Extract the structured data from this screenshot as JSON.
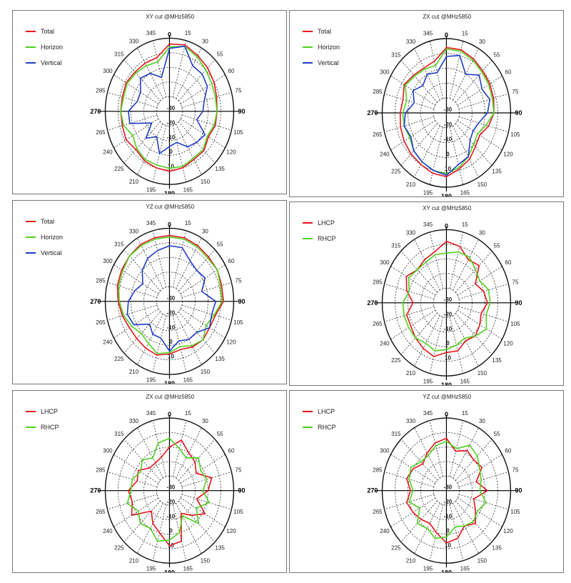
{
  "chart_data": [
    {
      "type": "polar-line",
      "title": "XY cut @MHz5850",
      "angle_ticks": [
        "0",
        "15",
        "30",
        "55",
        "60",
        "75",
        "90",
        "105",
        "120",
        "135",
        "150",
        "165",
        "180",
        "195",
        "210",
        "225",
        "240",
        "265",
        "270",
        "285",
        "300",
        "315",
        "330",
        "345"
      ],
      "radial_ticks": [
        "10",
        "0",
        "-10",
        "-20",
        "-30"
      ],
      "rlim": [
        -40,
        10
      ],
      "legend": "top-left",
      "series": [
        {
          "name": "Total",
          "color": "#e8141c",
          "values": [
            6,
            7,
            4,
            2,
            0,
            -2,
            -3,
            -3,
            -5,
            -2,
            -2,
            0,
            1,
            0,
            -1,
            -3,
            -1,
            -2,
            -2,
            -2,
            -1,
            -2,
            -2,
            -2
          ]
        },
        {
          "name": "Horizon",
          "color": "#4ed11e",
          "values": [
            4,
            6,
            3,
            0,
            -2,
            -3,
            -3,
            -4,
            -6,
            -3,
            -3,
            -1,
            -1,
            -2,
            -2,
            -4,
            -7,
            -3,
            -2,
            -3,
            -2,
            -3,
            -4,
            -5
          ]
        },
        {
          "name": "Vertical",
          "color": "#1e3cc8",
          "values": [
            3,
            6,
            -4,
            -4,
            -6,
            -12,
            -14,
            -18,
            -8,
            -10,
            -12,
            -18,
            -16,
            -10,
            -20,
            -14,
            -24,
            -8,
            -8,
            -14,
            -14,
            -8,
            -10,
            -16
          ]
        }
      ]
    },
    {
      "type": "polar-line",
      "title": "ZX cut @MHz5850",
      "angle_ticks": [
        "0",
        "15",
        "30",
        "55",
        "60",
        "75",
        "90",
        "105",
        "120",
        "135",
        "150",
        "165",
        "180",
        "195",
        "210",
        "225",
        "240",
        "265",
        "270",
        "285",
        "300",
        "315",
        "330",
        "345"
      ],
      "radial_ticks": [
        "10",
        "0",
        "-10",
        "-20",
        "-30"
      ],
      "rlim": [
        -40,
        10
      ],
      "legend": "top-left",
      "series": [
        {
          "name": "Total",
          "color": "#e8141c",
          "values": [
            4,
            4,
            2,
            0,
            -1,
            -2,
            -3,
            -6,
            -10,
            -8,
            -4,
            -1,
            3,
            2,
            0,
            -1,
            -2,
            -3,
            -4,
            -5,
            -2,
            -4,
            -5,
            -4
          ]
        },
        {
          "name": "Horizon",
          "color": "#4ed11e",
          "values": [
            3,
            3,
            1,
            -1,
            -2,
            -3,
            -3,
            -8,
            -12,
            -10,
            -6,
            -2,
            1,
            0,
            -2,
            -4,
            -7,
            -6,
            -6,
            -8,
            -3,
            -5,
            -6,
            -7
          ]
        },
        {
          "name": "Vertical",
          "color": "#1e3cc8",
          "values": [
            -2,
            0,
            -10,
            -4,
            -8,
            -5,
            -8,
            -14,
            -16,
            -14,
            -6,
            -4,
            2,
            0,
            -2,
            -4,
            -8,
            -6,
            -8,
            -14,
            -10,
            -14,
            -10,
            -12
          ]
        }
      ]
    },
    {
      "type": "polar-line",
      "title": "YZ cut @MHz5850",
      "angle_ticks": [
        "0",
        "15",
        "30",
        "55",
        "60",
        "75",
        "90",
        "105",
        "120",
        "135",
        "150",
        "165",
        "180",
        "195",
        "210",
        "225",
        "240",
        "265",
        "270",
        "285",
        "300",
        "315",
        "330",
        "345"
      ],
      "radial_ticks": [
        "10",
        "0",
        "-10",
        "-20",
        "-30"
      ],
      "rlim": [
        -40,
        10
      ],
      "legend": "top-left",
      "series": [
        {
          "name": "Total",
          "color": "#e8141c",
          "values": [
            5,
            5,
            4,
            3,
            3,
            2,
            2,
            -3,
            -4,
            -3,
            -4,
            -6,
            -4,
            -2,
            -3,
            -4,
            -4,
            -2,
            0,
            2,
            3,
            4,
            5,
            5
          ]
        },
        {
          "name": "Horizon",
          "color": "#4ed11e",
          "values": [
            4,
            4,
            3,
            2,
            3,
            1,
            1,
            -4,
            -7,
            -3,
            -5,
            -8,
            -5,
            -3,
            -7,
            -9,
            -6,
            -3,
            -1,
            1,
            2,
            4,
            4,
            4
          ]
        },
        {
          "name": "Vertical",
          "color": "#1e3cc8",
          "values": [
            -2,
            -2,
            -8,
            -10,
            -8,
            -14,
            -4,
            -6,
            -4,
            -10,
            -10,
            -12,
            -6,
            -14,
            -14,
            -18,
            -8,
            -6,
            -8,
            -12,
            -16,
            -10,
            -6,
            -4
          ]
        }
      ]
    },
    {
      "type": "polar-line",
      "title": "XY cut @MHz5850",
      "angle_ticks": [
        "0",
        "15",
        "30",
        "55",
        "60",
        "75",
        "90",
        "105",
        "120",
        "135",
        "150",
        "165",
        "180",
        "195",
        "210",
        "225",
        "240",
        "265",
        "270",
        "285",
        "300",
        "315",
        "330",
        "345"
      ],
      "radial_ticks": [
        "10",
        "0",
        "-10",
        "-20",
        "-30"
      ],
      "rlim": [
        -40,
        10
      ],
      "legend": "top-left",
      "series": [
        {
          "name": "LHCP",
          "color": "#e8141c",
          "values": [
            2,
            0,
            -6,
            -4,
            -14,
            -10,
            -8,
            -12,
            -10,
            -8,
            -10,
            -6,
            -6,
            -2,
            -4,
            -6,
            -8,
            -8,
            -14,
            -8,
            -4,
            -8,
            -6,
            -4
          ]
        },
        {
          "name": "RHCP",
          "color": "#4ed11e",
          "values": [
            -6,
            -4,
            -4,
            -8,
            -10,
            -6,
            -6,
            -8,
            -4,
            -8,
            -12,
            -10,
            -8,
            -6,
            -8,
            -6,
            -6,
            -6,
            -6,
            -10,
            -6,
            -8,
            -8,
            -6
          ]
        }
      ]
    },
    {
      "type": "polar-line",
      "title": "ZX cut @MHz5850",
      "angle_ticks": [
        "0",
        "15",
        "30",
        "55",
        "60",
        "75",
        "90",
        "105",
        "120",
        "135",
        "150",
        "165",
        "180",
        "195",
        "210",
        "225",
        "240",
        "265",
        "270",
        "285",
        "300",
        "315",
        "330",
        "345"
      ],
      "radial_ticks": [
        "10",
        "0",
        "-10",
        "-20",
        "-30"
      ],
      "rlim": [
        -40,
        10
      ],
      "legend": "top-left",
      "series": [
        {
          "name": "LHCP",
          "color": "#e8141c",
          "values": [
            -10,
            -4,
            -10,
            -12,
            -16,
            -6,
            -10,
            -18,
            -8,
            -16,
            -22,
            -4,
            -2,
            -10,
            -14,
            -20,
            -6,
            -10,
            -8,
            -14,
            -12,
            -18,
            -18,
            -16
          ]
        },
        {
          "name": "RHCP",
          "color": "#4ed11e",
          "values": [
            -4,
            -10,
            -14,
            -8,
            -12,
            -10,
            -14,
            -8,
            -16,
            -8,
            -20,
            -10,
            -6,
            -4,
            -10,
            -8,
            -12,
            -6,
            -10,
            -10,
            -14,
            -10,
            -14,
            -6
          ]
        }
      ]
    },
    {
      "type": "polar-line",
      "title": "YZ cut @MHz5850",
      "angle_ticks": [
        "0",
        "15",
        "30",
        "55",
        "60",
        "75",
        "90",
        "105",
        "120",
        "135",
        "150",
        "165",
        "180",
        "195",
        "210",
        "225",
        "240",
        "265",
        "270",
        "285",
        "300",
        "315",
        "330",
        "345"
      ],
      "radial_ticks": [
        "10",
        "0",
        "-10",
        "-20",
        "-30"
      ],
      "rlim": [
        -40,
        10
      ],
      "legend": "top-left",
      "series": [
        {
          "name": "LHCP",
          "color": "#e8141c",
          "values": [
            -4,
            -12,
            -8,
            -10,
            -8,
            -16,
            -8,
            -18,
            -14,
            -8,
            -12,
            -6,
            -4,
            -10,
            -14,
            -12,
            -10,
            -8,
            -12,
            -8,
            -10,
            -14,
            -10,
            -6
          ]
        },
        {
          "name": "RHCP",
          "color": "#4ed11e",
          "values": [
            -6,
            -10,
            -4,
            -6,
            -10,
            -12,
            -14,
            -8,
            -12,
            -10,
            -12,
            -14,
            -8,
            -6,
            -10,
            -8,
            -16,
            -10,
            -14,
            -10,
            -8,
            -12,
            -12,
            -8
          ]
        }
      ]
    }
  ]
}
